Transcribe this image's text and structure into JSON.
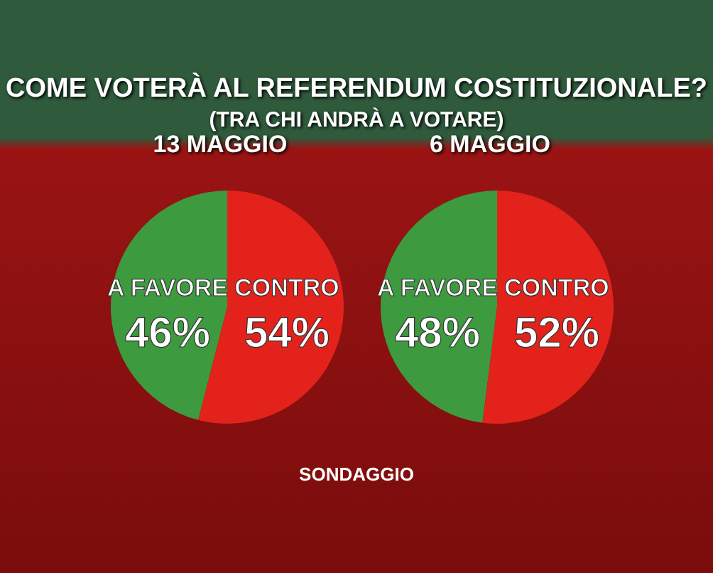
{
  "chart_data": [
    {
      "type": "other",
      "title": "COME VOTERÀ AL REFERENDUM COSTITUZIONALE?",
      "subtitle": "(TRA CHI ANDRÀ A VOTARE)",
      "annotations": [
        "SONDAGGIO"
      ]
    },
    {
      "type": "pie",
      "title": "13 MAGGIO",
      "categories": [
        "A FAVORE",
        "CONTRO"
      ],
      "values": [
        46,
        54
      ],
      "colors": [
        "#3d9a3f",
        "#e3221c"
      ],
      "value_labels": [
        "46%",
        "54%"
      ]
    },
    {
      "type": "pie",
      "title": "6 MAGGIO",
      "categories": [
        "A FAVORE",
        "CONTRO"
      ],
      "values": [
        48,
        52
      ],
      "colors": [
        "#3d9a3f",
        "#e3221c"
      ],
      "value_labels": [
        "48%",
        "52%"
      ]
    }
  ]
}
